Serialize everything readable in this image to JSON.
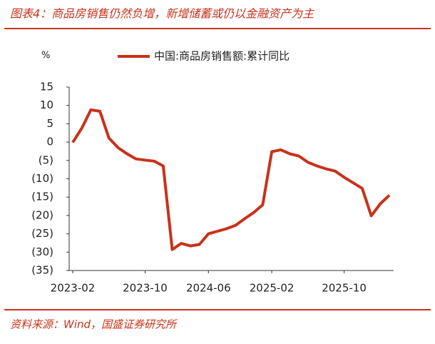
{
  "header": {
    "title": "图表4：商品房销售仍然负增，新增储蓄或仍以金融资产为主"
  },
  "chart_data": {
    "type": "line",
    "ylabel": "%",
    "categories": [
      "2023-02",
      null,
      null,
      null,
      null,
      null,
      null,
      null,
      "2023-10",
      null,
      null,
      null,
      null,
      null,
      null,
      "2024-06",
      null,
      null,
      null,
      null,
      null,
      null,
      "2025-02",
      null,
      null,
      null,
      null,
      null,
      null,
      null,
      "2025-10",
      null,
      null,
      null,
      null,
      null
    ],
    "series": [
      {
        "name": "中国:商品房销售额:累计同比",
        "color": "#c8321a",
        "values": [
          -0.1,
          3.8,
          8.8,
          8.4,
          1.1,
          -1.5,
          -3.2,
          -4.6,
          -4.9,
          -5.2,
          -6.5,
          -29.3,
          -27.6,
          -28.3,
          -27.9,
          -25.0,
          -24.3,
          -23.6,
          -22.7,
          -20.9,
          -19.2,
          -17.1,
          -2.6,
          -2.1,
          -3.2,
          -3.8,
          -5.5,
          -6.5,
          -7.3,
          -7.9,
          -9.6,
          -11.1,
          -12.6,
          -20.1,
          -16.8,
          -14.5
        ]
      }
    ],
    "ylim": [
      -35,
      15
    ],
    "yticks": [
      15,
      10,
      5,
      0,
      {
        "value": -5,
        "label": "(5)"
      },
      {
        "value": -10,
        "label": "(10)"
      },
      {
        "value": -15,
        "label": "(15)"
      },
      {
        "value": -20,
        "label": "(20)"
      },
      {
        "value": -25,
        "label": "(25)"
      },
      {
        "value": -30,
        "label": "(30)"
      },
      {
        "value": -35,
        "label": "(35)"
      }
    ],
    "grid": false,
    "legend": "top"
  },
  "footer": {
    "source": "资料来源：Wind，国盛证券研究所"
  }
}
